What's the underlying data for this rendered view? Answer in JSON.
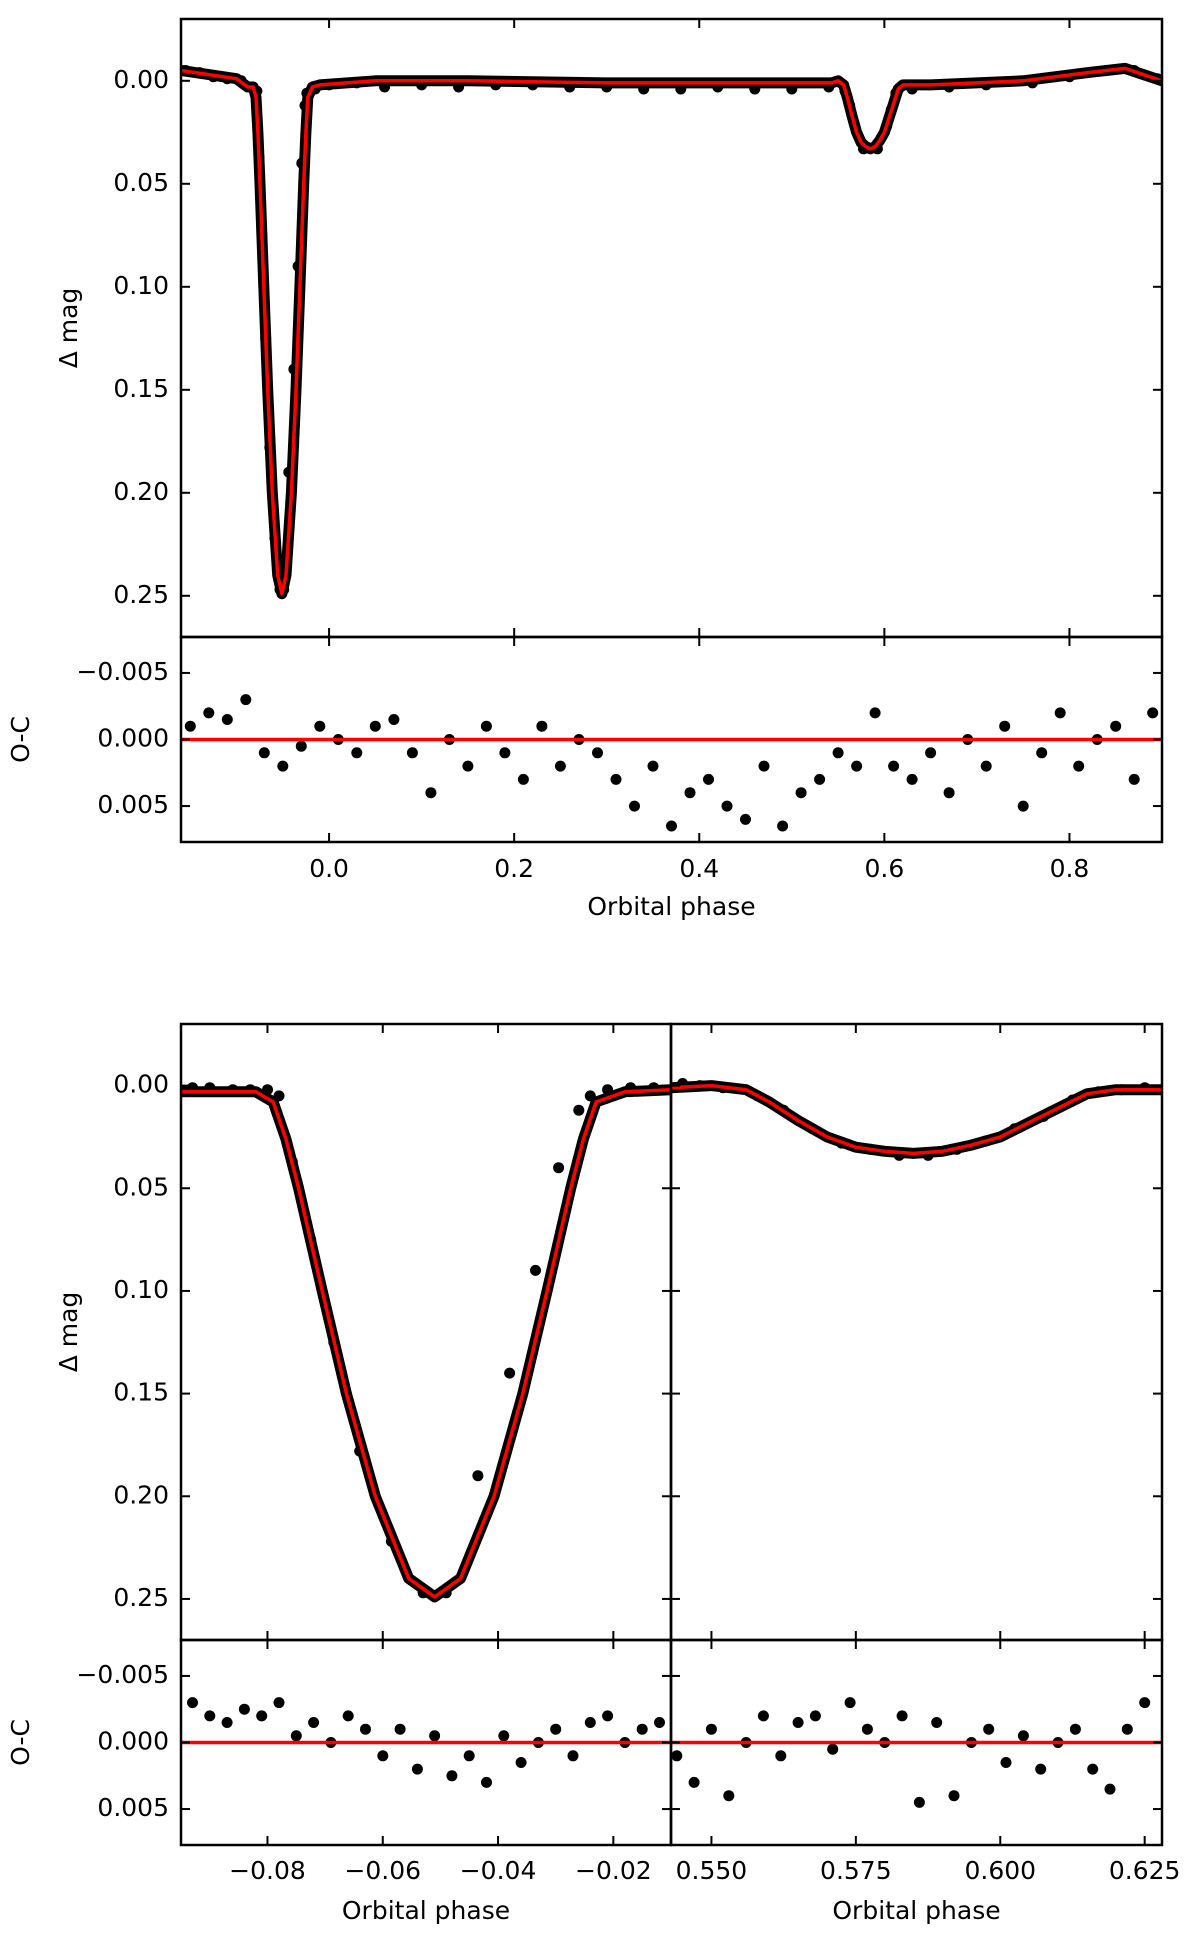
{
  "chart_data": [
    {
      "type": "scatter",
      "ylabel": "Δ mag",
      "xlim": [
        -0.16,
        0.9
      ],
      "ylim": [
        -0.03,
        0.27
      ],
      "y_inverted": true,
      "yticks": [
        {
          "value": 0,
          "label": "0.00"
        },
        0.05,
        {
          "value": 0.1,
          "label": "0.10"
        },
        0.15,
        {
          "value": 0.2,
          "label": "0.20"
        },
        0.25
      ],
      "series": [
        {
          "kind": "scatter",
          "color": "#000000",
          "x": [
            -0.155,
            -0.14,
            -0.125,
            -0.11,
            -0.095,
            -0.085,
            -0.078,
            -0.0757,
            -0.0725,
            -0.0685,
            -0.064,
            -0.0585,
            -0.053,
            -0.049,
            -0.0435,
            -0.038,
            -0.0335,
            -0.0295,
            -0.026,
            -0.024,
            -0.015,
            0.0,
            0.03,
            0.06,
            0.1,
            0.14,
            0.18,
            0.22,
            0.26,
            0.3,
            0.34,
            0.38,
            0.42,
            0.46,
            0.5,
            0.54,
            0.5575,
            0.5625,
            0.5675,
            0.5775,
            0.5925,
            0.6025,
            0.6075,
            0.6125,
            0.63,
            0.67,
            0.71,
            0.76,
            0.8,
            0.84,
            0.87,
            0.895
          ],
          "values": [
            -0.005,
            -0.004,
            -0.002,
            -0.001,
            0.0,
            0.003,
            0.005,
            0.037,
            0.075,
            0.125,
            0.178,
            0.222,
            0.247,
            0.247,
            0.19,
            0.14,
            0.09,
            0.04,
            0.012,
            0.006,
            0.004,
            0.002,
            0.001,
            0.003,
            0.002,
            0.003,
            0.002,
            0.002,
            0.003,
            0.003,
            0.004,
            0.004,
            0.003,
            0.004,
            0.004,
            0.003,
            0.005,
            0.012,
            0.021,
            0.033,
            0.033,
            0.022,
            0.014,
            0.006,
            0.004,
            0.003,
            0.002,
            0.001,
            -0.002,
            -0.005,
            -0.005,
            -0.001
          ]
        },
        {
          "kind": "line",
          "color": "#ff0000",
          "x": [
            -0.16,
            -0.13,
            -0.1,
            -0.088,
            -0.082,
            -0.079,
            -0.0768,
            -0.0746,
            -0.0705,
            -0.0663,
            -0.0613,
            -0.0555,
            -0.051,
            -0.0465,
            -0.0407,
            -0.0357,
            -0.0315,
            -0.0274,
            -0.0252,
            -0.023,
            -0.018,
            -0.01,
            0.05,
            0.15,
            0.3,
            0.45,
            0.543,
            0.55,
            0.556,
            0.56,
            0.565,
            0.57,
            0.575,
            0.58,
            0.585,
            0.59,
            0.595,
            0.6,
            0.605,
            0.61,
            0.615,
            0.62,
            0.65,
            0.75,
            0.82,
            0.86,
            0.9
          ],
          "values": [
            -0.005,
            -0.003,
            -0.001,
            0.003,
            0.003,
            0.008,
            0.026,
            0.05,
            0.1,
            0.15,
            0.2,
            0.24,
            0.249,
            0.24,
            0.2,
            0.15,
            0.1,
            0.05,
            0.026,
            0.008,
            0.003,
            0.002,
            0.0,
            0.0,
            0.001,
            0.001,
            0.001,
            0.0,
            0.002,
            0.008,
            0.017,
            0.025,
            0.03,
            0.032,
            0.033,
            0.032,
            0.029,
            0.025,
            0.018,
            0.011,
            0.004,
            0.002,
            0.002,
            0.0,
            -0.004,
            -0.006,
            0.0
          ]
        }
      ]
    },
    {
      "type": "scatter",
      "ylabel": "O-C",
      "xlabel": "Orbital phase",
      "xlim": [
        -0.16,
        0.9
      ],
      "ylim": [
        -0.0077,
        0.0077
      ],
      "y_inverted": true,
      "xticks": [
        {
          "value": 0,
          "label": "0.0"
        },
        0.2,
        0.4,
        0.6,
        0.8
      ],
      "yticks": [
        {
          "value": -0.005,
          "label": "−0.005"
        },
        {
          "value": 0,
          "label": "0.000"
        },
        0.005
      ],
      "zero_line": 0,
      "zero_line_color": "#ff0000",
      "series": [
        {
          "kind": "scatter",
          "color": "#000000",
          "x": [
            -0.15,
            -0.13,
            -0.11,
            -0.09,
            -0.07,
            -0.05,
            -0.03,
            -0.01,
            0.01,
            0.03,
            0.05,
            0.07,
            0.09,
            0.11,
            0.13,
            0.15,
            0.17,
            0.19,
            0.21,
            0.23,
            0.25,
            0.27,
            0.29,
            0.31,
            0.33,
            0.35,
            0.37,
            0.39,
            0.41,
            0.43,
            0.45,
            0.47,
            0.49,
            0.51,
            0.53,
            0.55,
            0.57,
            0.59,
            0.61,
            0.63,
            0.65,
            0.67,
            0.69,
            0.71,
            0.73,
            0.75,
            0.77,
            0.79,
            0.81,
            0.83,
            0.85,
            0.87,
            0.89
          ],
          "values": [
            -0.001,
            -0.002,
            -0.0015,
            -0.003,
            0.001,
            0.002,
            0.0005,
            -0.001,
            0.0,
            0.001,
            -0.001,
            -0.0015,
            0.001,
            0.004,
            0.0,
            0.002,
            -0.001,
            0.001,
            0.003,
            -0.001,
            0.002,
            0.0,
            0.001,
            0.003,
            0.005,
            0.002,
            0.0065,
            0.004,
            0.003,
            0.005,
            0.006,
            0.002,
            0.0065,
            0.004,
            0.003,
            0.001,
            0.002,
            -0.002,
            0.002,
            0.003,
            0.001,
            0.004,
            0.0,
            0.002,
            -0.001,
            0.005,
            0.001,
            -0.002,
            0.002,
            0.0,
            -0.001,
            0.003,
            -0.002
          ]
        }
      ]
    },
    {
      "type": "scatter",
      "ylabel": "Δ mag",
      "xlim": [
        -0.095,
        -0.01
      ],
      "ylim": [
        -0.03,
        0.27
      ],
      "y_inverted": true,
      "yticks": [
        {
          "value": 0,
          "label": "0.00"
        },
        0.05,
        {
          "value": 0.1,
          "label": "0.10"
        },
        0.15,
        {
          "value": 0.2,
          "label": "0.20"
        },
        0.25
      ],
      "series": [
        {
          "kind": "scatter",
          "color": "#000000",
          "x": [
            -0.093,
            -0.09,
            -0.086,
            -0.083,
            -0.08,
            -0.078,
            -0.0757,
            -0.0725,
            -0.0685,
            -0.064,
            -0.0585,
            -0.053,
            -0.049,
            -0.0435,
            -0.038,
            -0.0335,
            -0.0295,
            -0.026,
            -0.024,
            -0.021,
            -0.017,
            -0.013
          ],
          "values": [
            0.001,
            0.001,
            0.002,
            0.002,
            0.002,
            0.005,
            0.037,
            0.075,
            0.125,
            0.178,
            0.222,
            0.247,
            0.247,
            0.19,
            0.14,
            0.09,
            0.04,
            0.012,
            0.005,
            0.002,
            0.001,
            0.001
          ]
        },
        {
          "kind": "line",
          "color": "#ff0000",
          "x": [
            -0.095,
            -0.088,
            -0.082,
            -0.079,
            -0.0768,
            -0.0746,
            -0.0705,
            -0.0663,
            -0.0613,
            -0.0555,
            -0.051,
            -0.0465,
            -0.0407,
            -0.0357,
            -0.0315,
            -0.0274,
            -0.0252,
            -0.023,
            -0.018,
            -0.01
          ],
          "values": [
            0.003,
            0.003,
            0.003,
            0.008,
            0.026,
            0.05,
            0.1,
            0.15,
            0.2,
            0.24,
            0.249,
            0.24,
            0.2,
            0.15,
            0.1,
            0.05,
            0.026,
            0.008,
            0.003,
            0.002
          ]
        }
      ]
    },
    {
      "type": "scatter",
      "xlim": [
        0.543,
        0.628
      ],
      "ylim": [
        -0.03,
        0.27
      ],
      "y_inverted": true,
      "series": [
        {
          "kind": "scatter",
          "color": "#000000",
          "x": [
            0.545,
            0.548,
            0.552,
            0.558,
            0.5625,
            0.5675,
            0.5725,
            0.5775,
            0.5825,
            0.5875,
            0.5925,
            0.5975,
            0.6025,
            0.6075,
            0.6125,
            0.617,
            0.621,
            0.625
          ],
          "values": [
            -0.001,
            0.0,
            0.001,
            0.005,
            0.012,
            0.021,
            0.028,
            0.031,
            0.034,
            0.034,
            0.031,
            0.027,
            0.021,
            0.015,
            0.007,
            0.003,
            0.002,
            0.001
          ]
        },
        {
          "kind": "line",
          "color": "#ff0000",
          "x": [
            0.543,
            0.55,
            0.556,
            0.56,
            0.565,
            0.57,
            0.575,
            0.58,
            0.585,
            0.59,
            0.595,
            0.6,
            0.605,
            0.61,
            0.615,
            0.62,
            0.628
          ],
          "values": [
            0.001,
            0.0,
            0.002,
            0.008,
            0.017,
            0.025,
            0.03,
            0.032,
            0.033,
            0.032,
            0.029,
            0.025,
            0.018,
            0.011,
            0.004,
            0.002,
            0.002
          ]
        }
      ]
    },
    {
      "type": "scatter",
      "ylabel": "O-C",
      "xlabel": "Orbital phase",
      "xlim": [
        -0.095,
        -0.01
      ],
      "ylim": [
        -0.0077,
        0.0077
      ],
      "y_inverted": true,
      "xticks": [
        {
          "value": -0.08,
          "label": "−0.08"
        },
        {
          "value": -0.06,
          "label": "−0.06"
        },
        {
          "value": -0.04,
          "label": "−0.04"
        },
        {
          "value": -0.02,
          "label": "−0.02"
        }
      ],
      "yticks": [
        {
          "value": -0.005,
          "label": "−0.005"
        },
        {
          "value": 0,
          "label": "0.000"
        },
        0.005
      ],
      "zero_line": 0,
      "zero_line_color": "#ff0000",
      "series": [
        {
          "kind": "scatter",
          "color": "#000000",
          "x": [
            -0.093,
            -0.09,
            -0.087,
            -0.084,
            -0.081,
            -0.078,
            -0.075,
            -0.072,
            -0.069,
            -0.066,
            -0.063,
            -0.06,
            -0.057,
            -0.054,
            -0.051,
            -0.048,
            -0.045,
            -0.042,
            -0.039,
            -0.036,
            -0.033,
            -0.03,
            -0.027,
            -0.024,
            -0.021,
            -0.018,
            -0.015,
            -0.012
          ],
          "values": [
            -0.003,
            -0.002,
            -0.0015,
            -0.0025,
            -0.002,
            -0.003,
            -0.0005,
            -0.0015,
            0.0,
            -0.002,
            -0.001,
            0.001,
            -0.001,
            0.002,
            -0.0005,
            0.0025,
            0.001,
            0.003,
            -0.0005,
            0.0015,
            0.0,
            -0.001,
            0.001,
            -0.0015,
            -0.002,
            0.0,
            -0.001,
            -0.0015
          ]
        }
      ]
    },
    {
      "type": "scatter",
      "xlabel": "Orbital phase",
      "xlim": [
        0.543,
        0.628
      ],
      "ylim": [
        -0.0077,
        0.0077
      ],
      "y_inverted": true,
      "xticks": [
        {
          "value": 0.55,
          "label": "0.550"
        },
        0.575,
        {
          "value": 0.6,
          "label": "0.600"
        },
        0.625
      ],
      "zero_line": 0,
      "zero_line_color": "#ff0000",
      "series": [
        {
          "kind": "scatter",
          "color": "#000000",
          "x": [
            0.544,
            0.547,
            0.55,
            0.553,
            0.556,
            0.559,
            0.562,
            0.565,
            0.568,
            0.571,
            0.574,
            0.577,
            0.58,
            0.583,
            0.586,
            0.589,
            0.592,
            0.595,
            0.598,
            0.601,
            0.604,
            0.607,
            0.61,
            0.613,
            0.616,
            0.619,
            0.622,
            0.625
          ],
          "values": [
            0.001,
            0.003,
            -0.001,
            0.004,
            0.0,
            -0.002,
            0.001,
            -0.0015,
            -0.002,
            0.0005,
            -0.003,
            -0.001,
            0.0,
            -0.002,
            0.0045,
            -0.0015,
            0.004,
            0.0,
            -0.001,
            0.0015,
            -0.0005,
            0.002,
            0.0,
            -0.001,
            0.002,
            0.0035,
            -0.001,
            -0.003
          ]
        }
      ]
    }
  ]
}
